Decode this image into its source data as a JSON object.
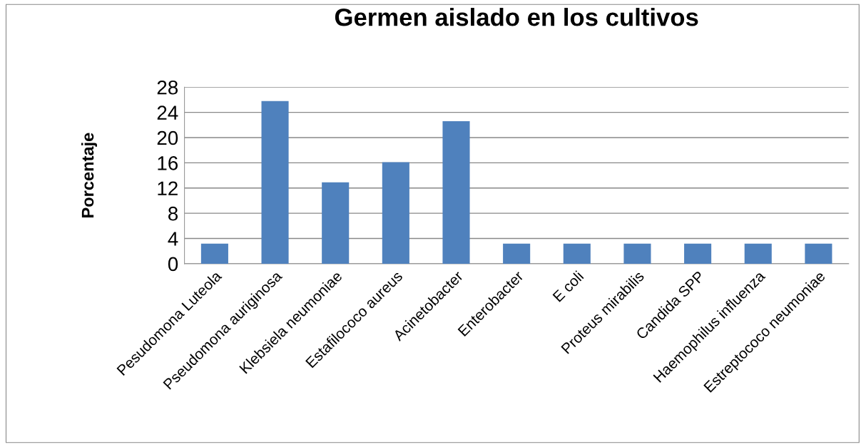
{
  "chart_data": {
    "type": "bar",
    "title": "Germen aislado en los cultivos",
    "ylabel": "Porcentaje",
    "categories": [
      "Pesudomona Luteola",
      "Pseudomona auriginosa",
      "Klebsiela neumoniae",
      "Estafilococo aureus",
      "Acinetobacter",
      "Enterobacter",
      "E coli",
      "Proteus mirabilis",
      "Candida SPP",
      "Haemophilus influenza",
      "Estreptococo neumoniae"
    ],
    "values": [
      3.2,
      25.8,
      12.9,
      16.1,
      22.6,
      3.2,
      3.2,
      3.2,
      3.2,
      3.2,
      3.2
    ],
    "color": "#4f81bd",
    "ylim": [
      0,
      28
    ],
    "yticks": [
      0,
      4,
      8,
      12,
      16,
      20,
      24,
      28
    ],
    "grid": "y"
  }
}
